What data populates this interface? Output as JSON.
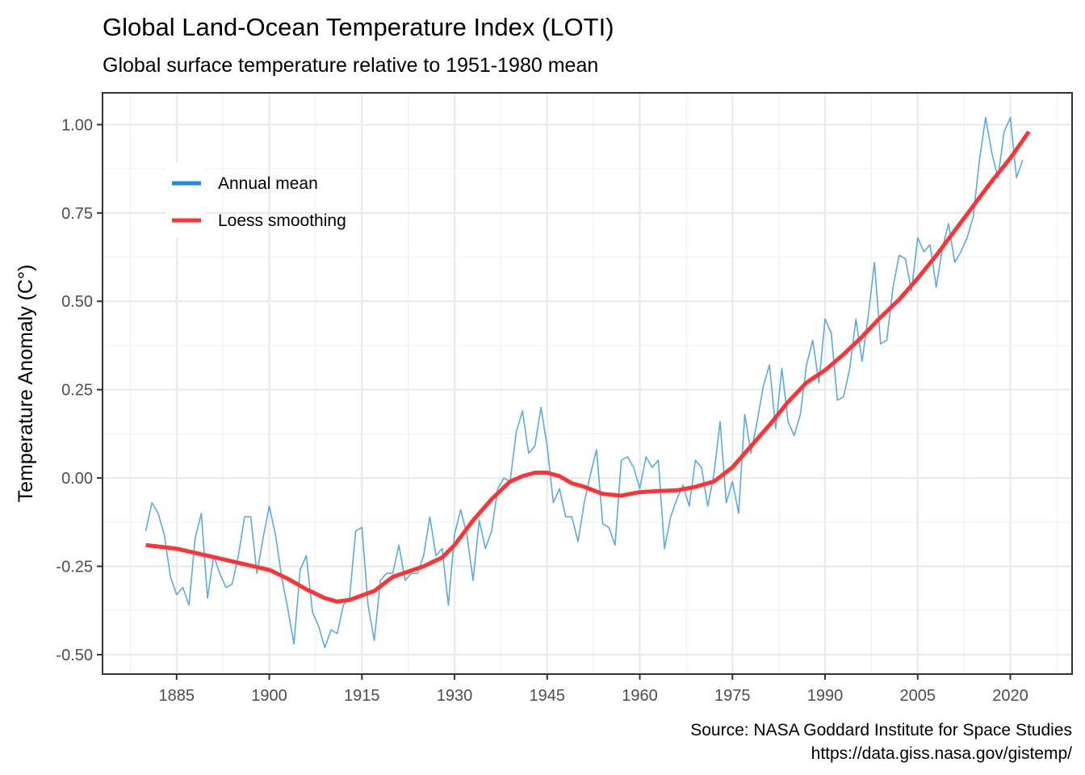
{
  "chart_data": {
    "type": "line",
    "title": "Global Land-Ocean Temperature Index (LOTI)",
    "subtitle": "Global surface temperature relative to 1951-1980 mean",
    "xlabel": "",
    "ylabel": "Temperature Anomaly (C°)",
    "caption_lines": [
      "Source: NASA Goddard Institute for Space Studies",
      "https://data.giss.nasa.gov/gistemp/"
    ],
    "xlim": [
      1873,
      2030
    ],
    "ylim": [
      -0.555,
      1.09
    ],
    "x_ticks": [
      1885,
      1900,
      1915,
      1930,
      1945,
      1960,
      1975,
      1990,
      2005,
      2020
    ],
    "x_tick_labels": [
      "1885",
      "1900",
      "1915",
      "1930",
      "1945",
      "1960",
      "1975",
      "1990",
      "2005",
      "2020"
    ],
    "x_minor_ticks": [
      1877.5,
      1892.5,
      1907.5,
      1922.5,
      1937.5,
      1952.5,
      1967.5,
      1982.5,
      1997.5,
      2012.5,
      2027.5
    ],
    "y_ticks": [
      -0.5,
      -0.25,
      0.0,
      0.25,
      0.5,
      0.75,
      1.0
    ],
    "y_tick_labels": [
      "-0.50",
      "-0.25",
      "0.00",
      "0.25",
      "0.50",
      "0.75",
      "1.00"
    ],
    "y_minor_ticks": [
      -0.375,
      -0.125,
      0.125,
      0.375,
      0.625,
      0.875
    ],
    "grid": true,
    "legend": {
      "position": "top-left inside",
      "entries": [
        {
          "label": "Annual mean",
          "color": "#1E88E5"
        },
        {
          "label": "Loess smoothing",
          "color": "#FF3333"
        }
      ]
    },
    "series": [
      {
        "name": "Annual mean",
        "color": "#5AAAE8",
        "x": [
          1880,
          1881,
          1882,
          1883,
          1884,
          1885,
          1886,
          1887,
          1888,
          1889,
          1890,
          1891,
          1892,
          1893,
          1894,
          1895,
          1896,
          1897,
          1898,
          1899,
          1900,
          1901,
          1902,
          1903,
          1904,
          1905,
          1906,
          1907,
          1908,
          1909,
          1910,
          1911,
          1912,
          1913,
          1914,
          1915,
          1916,
          1917,
          1918,
          1919,
          1920,
          1921,
          1922,
          1923,
          1924,
          1925,
          1926,
          1927,
          1928,
          1929,
          1930,
          1931,
          1932,
          1933,
          1934,
          1935,
          1936,
          1937,
          1938,
          1939,
          1940,
          1941,
          1942,
          1943,
          1944,
          1945,
          1946,
          1947,
          1948,
          1949,
          1950,
          1951,
          1952,
          1953,
          1954,
          1955,
          1956,
          1957,
          1958,
          1959,
          1960,
          1961,
          1962,
          1963,
          1964,
          1965,
          1966,
          1967,
          1968,
          1969,
          1970,
          1971,
          1972,
          1973,
          1974,
          1975,
          1976,
          1977,
          1978,
          1979,
          1980,
          1981,
          1982,
          1983,
          1984,
          1985,
          1986,
          1987,
          1988,
          1989,
          1990,
          1991,
          1992,
          1993,
          1994,
          1995,
          1996,
          1997,
          1998,
          1999,
          2000,
          2001,
          2002,
          2003,
          2004,
          2005,
          2006,
          2007,
          2008,
          2009,
          2010,
          2011,
          2012,
          2013,
          2014,
          2015,
          2016,
          2017,
          2018,
          2019,
          2020,
          2021,
          2022
        ],
        "values": [
          -0.15,
          -0.07,
          -0.1,
          -0.16,
          -0.28,
          -0.33,
          -0.31,
          -0.36,
          -0.17,
          -0.1,
          -0.34,
          -0.22,
          -0.27,
          -0.31,
          -0.3,
          -0.22,
          -0.11,
          -0.11,
          -0.27,
          -0.17,
          -0.08,
          -0.16,
          -0.28,
          -0.37,
          -0.47,
          -0.26,
          -0.22,
          -0.38,
          -0.42,
          -0.48,
          -0.43,
          -0.44,
          -0.36,
          -0.34,
          -0.15,
          -0.14,
          -0.36,
          -0.46,
          -0.29,
          -0.27,
          -0.27,
          -0.19,
          -0.29,
          -0.27,
          -0.27,
          -0.22,
          -0.11,
          -0.22,
          -0.2,
          -0.36,
          -0.16,
          -0.09,
          -0.16,
          -0.29,
          -0.12,
          -0.2,
          -0.15,
          -0.03,
          0.0,
          -0.01,
          0.13,
          0.19,
          0.07,
          0.09,
          0.2,
          0.09,
          -0.07,
          -0.03,
          -0.11,
          -0.11,
          -0.18,
          -0.07,
          0.01,
          0.08,
          -0.13,
          -0.14,
          -0.19,
          0.05,
          0.06,
          0.03,
          -0.03,
          0.06,
          0.03,
          0.05,
          -0.2,
          -0.11,
          -0.06,
          -0.02,
          -0.08,
          0.05,
          0.03,
          -0.08,
          0.01,
          0.16,
          -0.07,
          -0.01,
          -0.1,
          0.18,
          0.07,
          0.16,
          0.26,
          0.32,
          0.14,
          0.31,
          0.16,
          0.12,
          0.18,
          0.32,
          0.39,
          0.27,
          0.45,
          0.41,
          0.22,
          0.23,
          0.31,
          0.45,
          0.33,
          0.46,
          0.61,
          0.38,
          0.39,
          0.54,
          0.63,
          0.62,
          0.53,
          0.68,
          0.64,
          0.66,
          0.54,
          0.65,
          0.72,
          0.61,
          0.64,
          0.68,
          0.74,
          0.9,
          1.02,
          0.92,
          0.85,
          0.98,
          1.02,
          0.85,
          0.9
        ]
      },
      {
        "name": "Loess smoothing",
        "color": "#FF3333",
        "x": [
          1880,
          1885,
          1890,
          1895,
          1900,
          1903,
          1906,
          1909,
          1911,
          1913,
          1917,
          1920,
          1925,
          1928,
          1930,
          1933,
          1936,
          1939,
          1941,
          1943,
          1945,
          1947,
          1949,
          1951,
          1954,
          1957,
          1960,
          1963,
          1966,
          1969,
          1972,
          1975,
          1978,
          1981,
          1984,
          1987,
          1990,
          1993,
          1996,
          1999,
          2002,
          2005,
          2008,
          2011,
          2014,
          2017,
          2020,
          2023
        ],
        "values": [
          -0.19,
          -0.2,
          -0.22,
          -0.24,
          -0.26,
          -0.285,
          -0.315,
          -0.34,
          -0.35,
          -0.345,
          -0.32,
          -0.28,
          -0.25,
          -0.225,
          -0.19,
          -0.12,
          -0.06,
          -0.01,
          0.005,
          0.015,
          0.015,
          0.005,
          -0.015,
          -0.025,
          -0.045,
          -0.05,
          -0.04,
          -0.037,
          -0.035,
          -0.025,
          -0.01,
          0.03,
          0.09,
          0.15,
          0.215,
          0.27,
          0.305,
          0.35,
          0.4,
          0.455,
          0.505,
          0.565,
          0.63,
          0.7,
          0.77,
          0.84,
          0.905,
          0.98
        ]
      }
    ]
  }
}
